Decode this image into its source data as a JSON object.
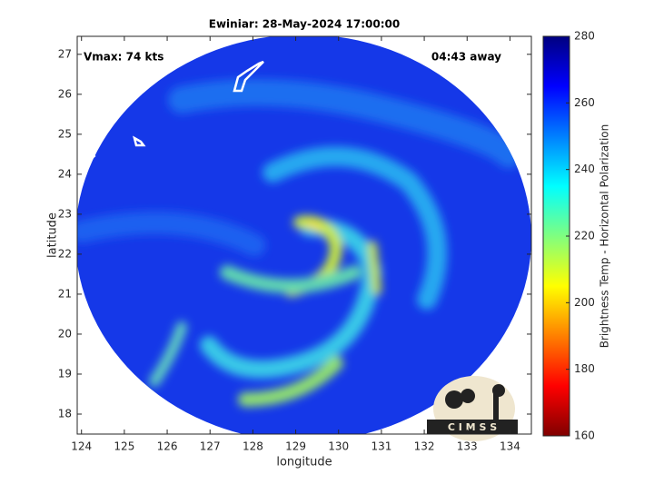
{
  "chart_data": {
    "type": "image",
    "title": "Ewiniar: 28-May-2024 17:00:00",
    "annotation_left": "Vmax: 74 kts",
    "annotation_right": "04:43 away",
    "x_label": "longitude",
    "y_label": "latitude",
    "xlim": [
      123.9,
      134.5
    ],
    "xticks": [
      124,
      125,
      126,
      127,
      128,
      129,
      130,
      131,
      132,
      133,
      134
    ],
    "ylim": [
      17.5,
      27.45
    ],
    "yticks": [
      18,
      19,
      20,
      21,
      22,
      23,
      24,
      25,
      26,
      27
    ],
    "colorbar": {
      "label": "Brightness Temp - Horizontal Polarization",
      "lim": [
        160,
        280
      ],
      "ticks": [
        160,
        180,
        200,
        220,
        240,
        260,
        280
      ]
    },
    "logo_text": "C I M S S"
  }
}
